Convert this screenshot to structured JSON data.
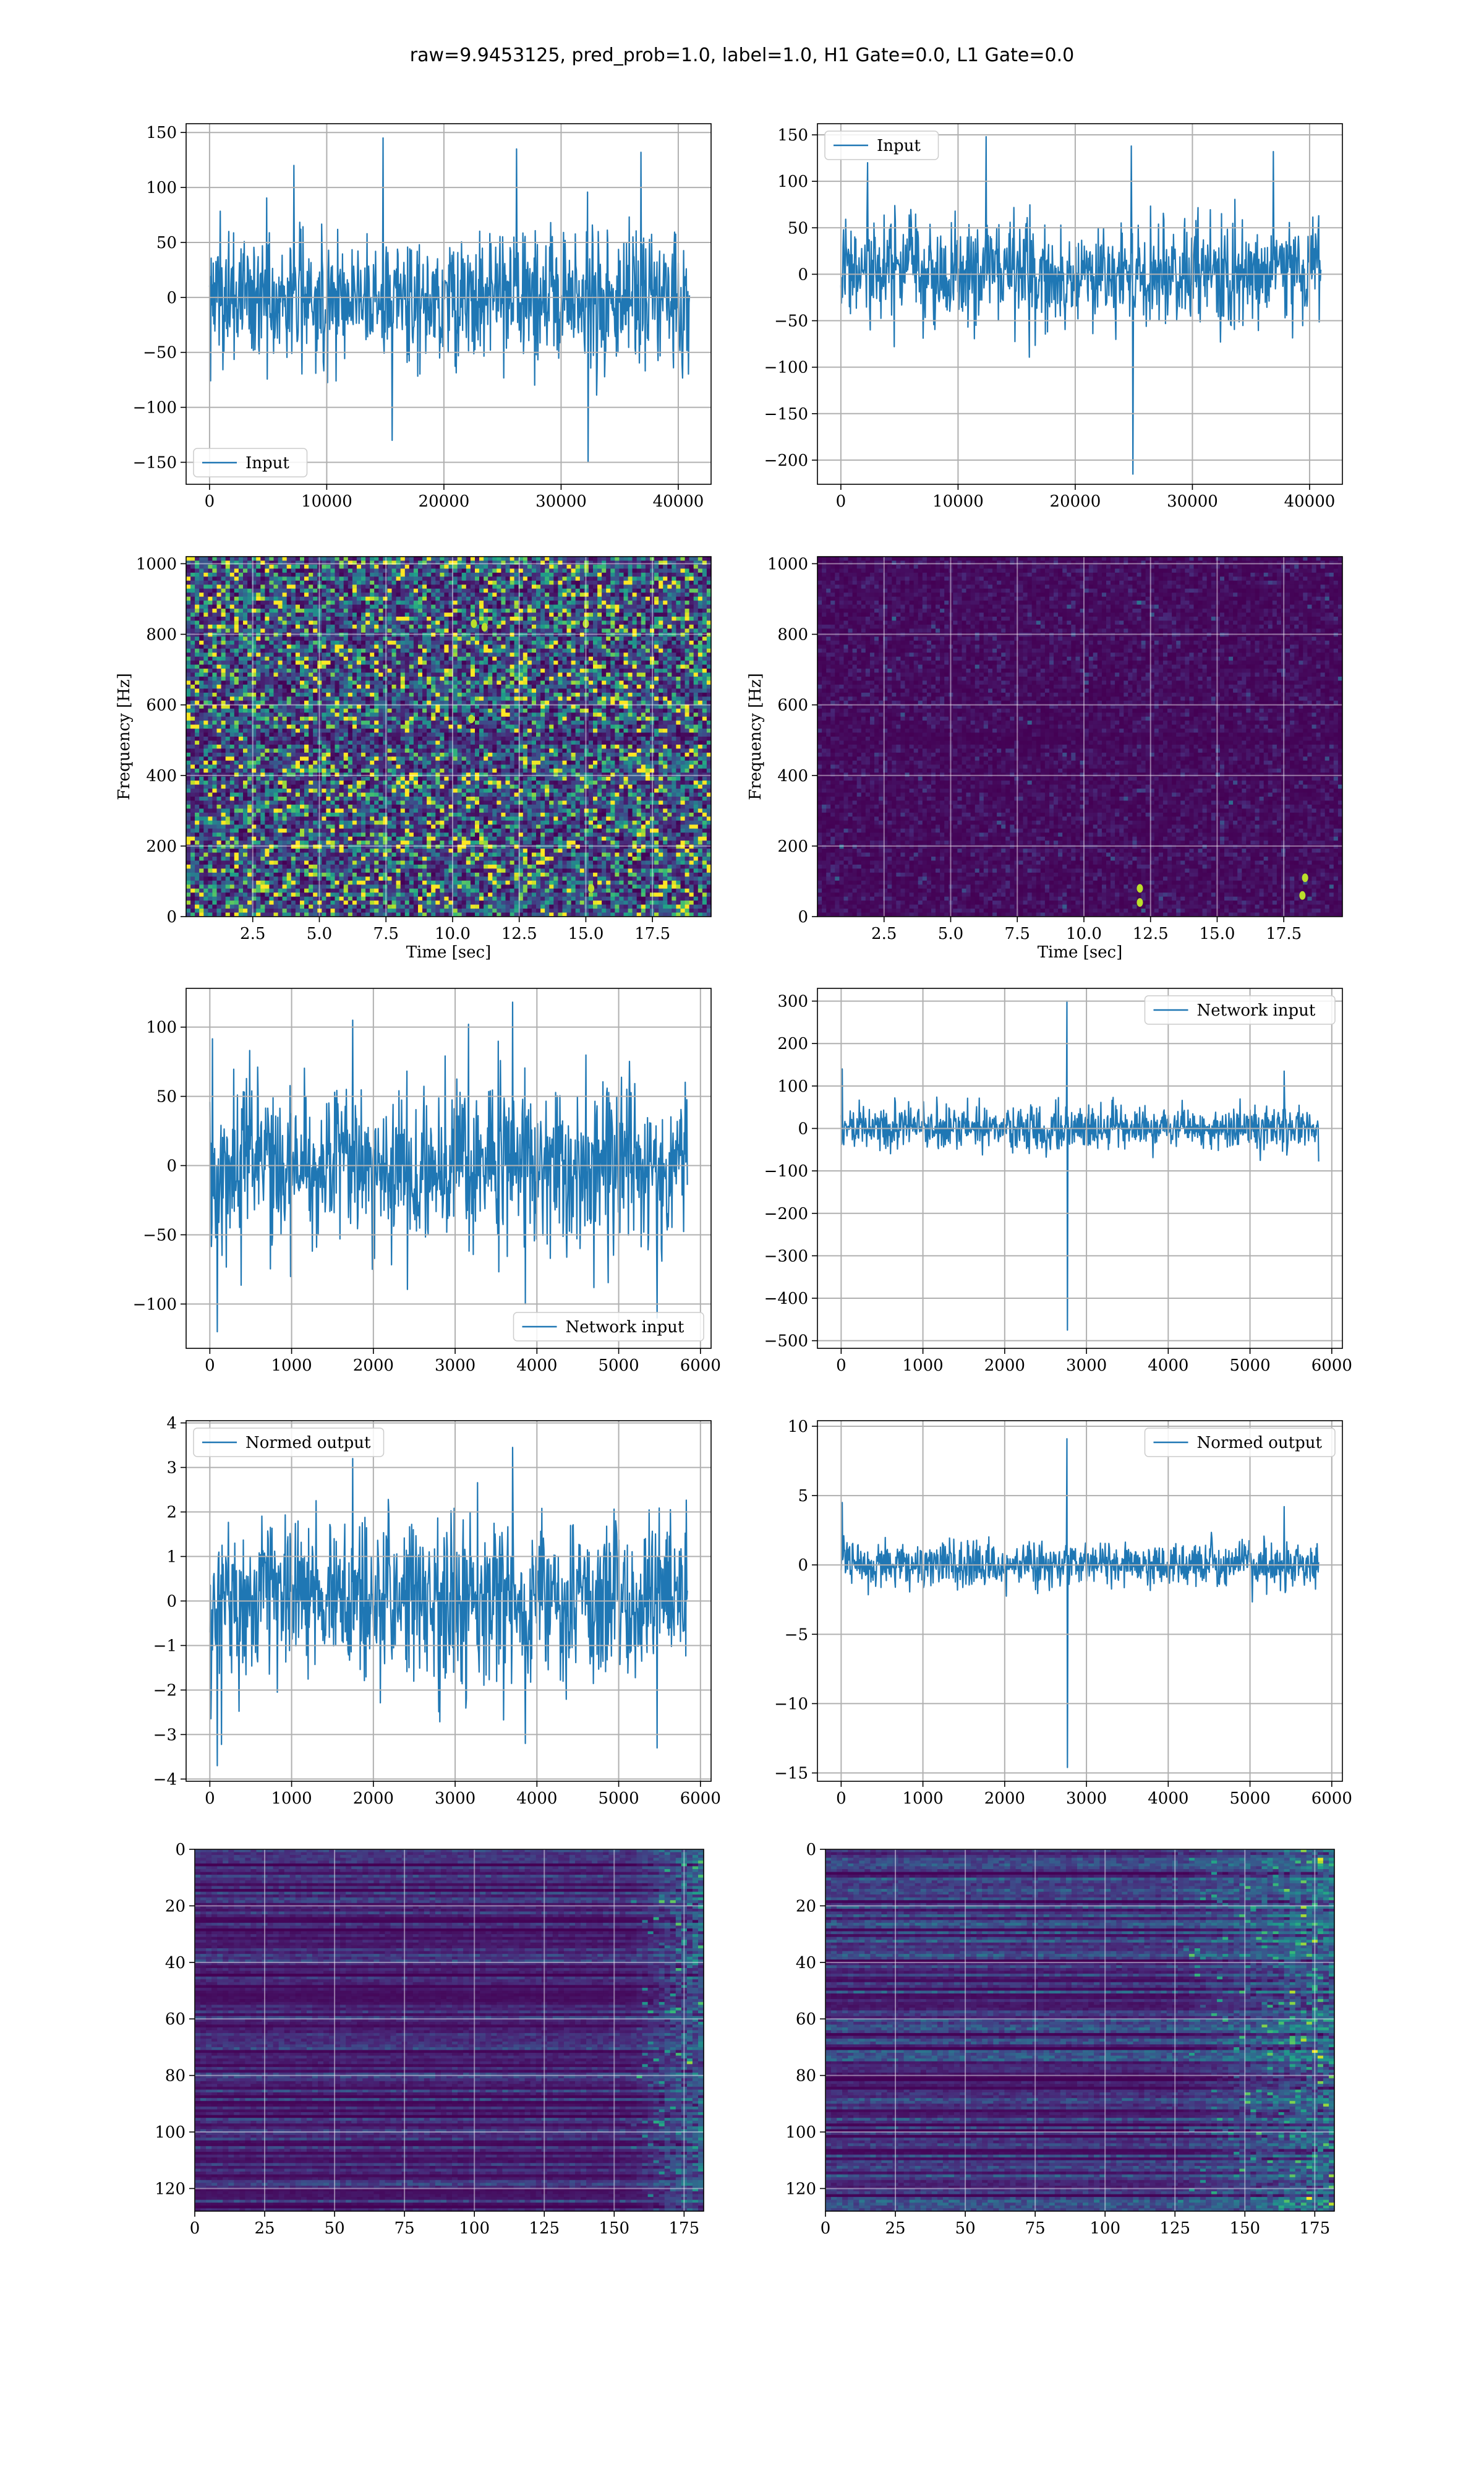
{
  "figure": {
    "suptitle": "raw=9.9453125, pred_prob=1.0, label=1.0, H1 Gate=0.0, L1 Gate=0.0"
  },
  "chart_data": [
    {
      "id": "row1-left",
      "type": "line",
      "kind": "signal",
      "xlim": [
        -2000,
        42800
      ],
      "ylim": [
        -170,
        158
      ],
      "xticks": [
        0,
        10000,
        20000,
        30000,
        40000
      ],
      "yticks": [
        -150,
        -100,
        -50,
        0,
        50,
        100,
        150
      ],
      "series": [
        {
          "name": "Input",
          "color": "#1f77b4",
          "x_range": [
            0,
            40960
          ],
          "n_points": 900,
          "sigma": 30,
          "bound": 142,
          "spikes": [
            [
              15600,
              -130
            ],
            [
              26200,
              135
            ],
            [
              32300,
              -150
            ],
            [
              14800,
              145
            ],
            [
              7200,
              120
            ],
            [
              36800,
              132
            ]
          ]
        }
      ],
      "legend": "lower-left",
      "grid": true,
      "xlabel": "",
      "ylabel": ""
    },
    {
      "id": "row1-right",
      "type": "line",
      "kind": "signal",
      "xlim": [
        -2000,
        42800
      ],
      "ylim": [
        -226,
        162
      ],
      "xticks": [
        0,
        10000,
        20000,
        30000,
        40000
      ],
      "yticks": [
        -200,
        -150,
        -100,
        -50,
        0,
        50,
        100,
        150
      ],
      "series": [
        {
          "name": "Input",
          "color": "#1f77b4",
          "x_range": [
            0,
            40960
          ],
          "n_points": 900,
          "sigma": 28,
          "bound": 125,
          "spikes": [
            [
              24900,
              -215
            ],
            [
              12400,
              148
            ],
            [
              24800,
              138
            ],
            [
              36900,
              132
            ],
            [
              2300,
              120
            ]
          ]
        }
      ],
      "legend": "upper-left",
      "grid": true,
      "xlabel": "",
      "ylabel": ""
    },
    {
      "id": "row2-left",
      "type": "heatmap",
      "kind": "spectrogram",
      "xlim": [
        0,
        19.7
      ],
      "ylim": [
        0,
        1020
      ],
      "xticks": [
        2.5,
        5.0,
        7.5,
        10.0,
        12.5,
        15.0,
        17.5
      ],
      "yticks": [
        0,
        200,
        400,
        600,
        800,
        1000
      ],
      "xlabel": "Time [sec]",
      "ylabel": "Frequency [Hz]",
      "colormap": "viridis",
      "intensity": 0.35,
      "grid": true,
      "bright_spots": [
        [
          10.8,
          830
        ],
        [
          11.2,
          820
        ],
        [
          15.0,
          830
        ],
        [
          10.7,
          560
        ],
        [
          15.2,
          80
        ]
      ]
    },
    {
      "id": "row2-right",
      "type": "heatmap",
      "kind": "spectrogram",
      "xlim": [
        0,
        19.7
      ],
      "ylim": [
        0,
        1020
      ],
      "xticks": [
        2.5,
        5.0,
        7.5,
        10.0,
        12.5,
        15.0,
        17.5
      ],
      "yticks": [
        0,
        200,
        400,
        600,
        800,
        1000
      ],
      "xlabel": "Time [sec]",
      "ylabel": "Frequency [Hz]",
      "colormap": "viridis",
      "intensity": 0.08,
      "grid": true,
      "bright_spots": [
        [
          12.1,
          40
        ],
        [
          12.1,
          80
        ],
        [
          18.2,
          60
        ],
        [
          18.3,
          110
        ]
      ]
    },
    {
      "id": "row3-left",
      "type": "line",
      "kind": "signal",
      "xlim": [
        -290,
        6130
      ],
      "ylim": [
        -132,
        128
      ],
      "xticks": [
        0,
        1000,
        2000,
        3000,
        4000,
        5000,
        6000
      ],
      "yticks": [
        -100,
        -50,
        0,
        50,
        100
      ],
      "series": [
        {
          "name": "Network input",
          "color": "#1f77b4",
          "x_range": [
            0,
            5840
          ],
          "n_points": 900,
          "sigma": 30,
          "bound": 110,
          "spikes": [
            [
              90,
              -120
            ],
            [
              3700,
              118
            ],
            [
              1750,
              105
            ],
            [
              5470,
              -110
            ],
            [
              3860,
              -100
            ]
          ]
        }
      ],
      "legend": "lower-right",
      "grid": true,
      "xlabel": "",
      "ylabel": ""
    },
    {
      "id": "row3-right",
      "type": "line",
      "kind": "signal",
      "xlim": [
        -290,
        6130
      ],
      "ylim": [
        -518,
        330
      ],
      "xticks": [
        0,
        1000,
        2000,
        3000,
        4000,
        5000,
        6000
      ],
      "yticks": [
        -500,
        -400,
        -300,
        -200,
        -100,
        0,
        100,
        200,
        300
      ],
      "series": [
        {
          "name": "Network input",
          "color": "#1f77b4",
          "x_range": [
            0,
            5840
          ],
          "n_points": 900,
          "sigma": 25,
          "bound": 120,
          "spikes": [
            [
              2760,
              300
            ],
            [
              2765,
              -475
            ],
            [
              10,
              140
            ],
            [
              5420,
              135
            ]
          ]
        }
      ],
      "legend": "upper-right",
      "grid": true,
      "xlabel": "",
      "ylabel": ""
    },
    {
      "id": "row4-left",
      "type": "line",
      "kind": "signal",
      "xlim": [
        -290,
        6130
      ],
      "ylim": [
        -4.05,
        4.05
      ],
      "xticks": [
        0,
        1000,
        2000,
        3000,
        4000,
        5000,
        6000
      ],
      "yticks": [
        -4,
        -3,
        -2,
        -1,
        0,
        1,
        2,
        3,
        4
      ],
      "series": [
        {
          "name": "Normed output",
          "color": "#1f77b4",
          "x_range": [
            0,
            5840
          ],
          "n_points": 900,
          "sigma": 0.95,
          "bound": 3.5,
          "spikes": [
            [
              90,
              -3.7
            ],
            [
              3700,
              3.45
            ],
            [
              1750,
              3.2
            ],
            [
              5470,
              -3.3
            ],
            [
              3860,
              -3.2
            ]
          ]
        }
      ],
      "legend": "upper-left",
      "grid": true,
      "xlabel": "",
      "ylabel": ""
    },
    {
      "id": "row4-right",
      "type": "line",
      "kind": "signal",
      "xlim": [
        -290,
        6130
      ],
      "ylim": [
        -15.6,
        10.4
      ],
      "xticks": [
        0,
        1000,
        2000,
        3000,
        4000,
        5000,
        6000
      ],
      "yticks": [
        -15,
        -10,
        -5,
        0,
        5,
        10
      ],
      "series": [
        {
          "name": "Normed output",
          "color": "#1f77b4",
          "x_range": [
            0,
            5840
          ],
          "n_points": 900,
          "sigma": 0.8,
          "bound": 3.5,
          "spikes": [
            [
              2760,
              9.1
            ],
            [
              2765,
              -14.6
            ],
            [
              10,
              4.5
            ],
            [
              5420,
              4.2
            ]
          ]
        }
      ],
      "legend": "upper-right",
      "grid": true,
      "xlabel": "",
      "ylabel": ""
    },
    {
      "id": "row5-left",
      "type": "heatmap",
      "kind": "feature-map",
      "xlim": [
        0,
        182
      ],
      "ylim": [
        128,
        0
      ],
      "xticks": [
        0,
        25,
        50,
        75,
        100,
        125,
        150,
        175
      ],
      "yticks": [
        0,
        20,
        40,
        60,
        80,
        100,
        120
      ],
      "colormap": "viridis",
      "intensity": 0.22,
      "grid": true,
      "hot_range": [
        155,
        182
      ],
      "xlabel": "",
      "ylabel": ""
    },
    {
      "id": "row5-right",
      "type": "heatmap",
      "kind": "feature-map",
      "xlim": [
        0,
        182
      ],
      "ylim": [
        128,
        0
      ],
      "xticks": [
        0,
        25,
        50,
        75,
        100,
        125,
        150,
        175
      ],
      "yticks": [
        0,
        20,
        40,
        60,
        80,
        100,
        120
      ],
      "colormap": "viridis",
      "intensity": 0.3,
      "grid": true,
      "hot_range": [
        125,
        182
      ],
      "xlabel": "",
      "ylabel": ""
    }
  ]
}
